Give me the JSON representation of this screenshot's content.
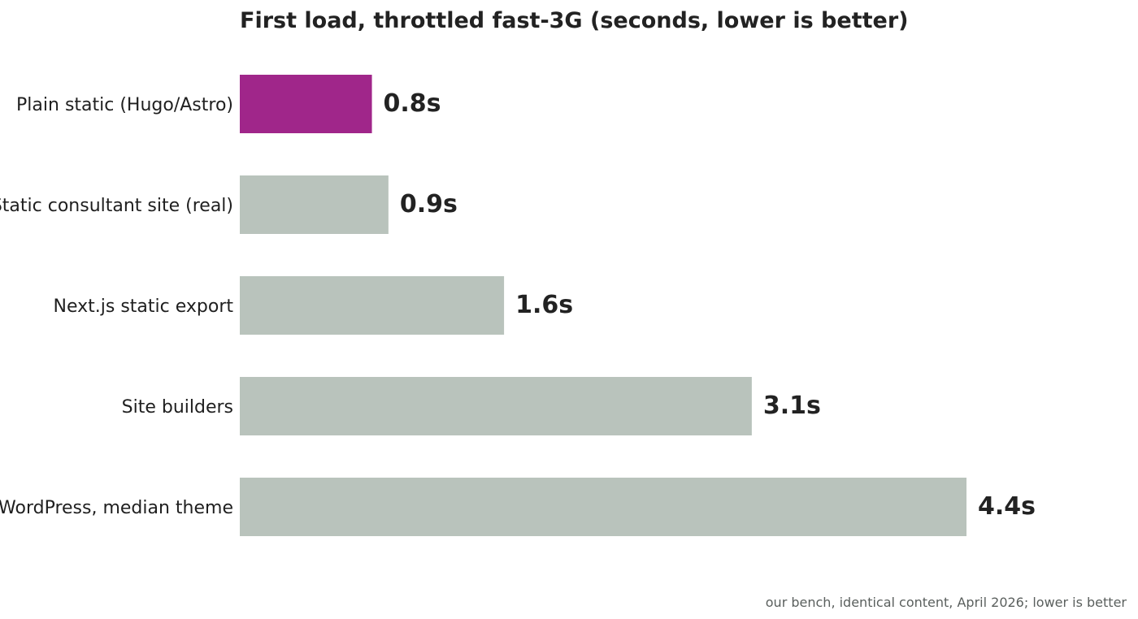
{
  "chart_data": {
    "type": "bar",
    "orientation": "horizontal",
    "title": "First load, throttled fast-3G (seconds, lower is better)",
    "categories": [
      "Plain static (Hugo/Astro)",
      "Static consultant site (real)",
      "Next.js static export",
      "Site builders",
      "WordPress, median theme"
    ],
    "values": [
      0.8,
      0.9,
      1.6,
      3.1,
      4.4
    ],
    "value_labels": [
      "0.8s",
      "0.9s",
      "1.6s",
      "3.1s",
      "4.4s"
    ],
    "unit": "s",
    "xlim": [
      0,
      4.4
    ],
    "highlight_index": 0,
    "colors": {
      "highlight": "#a0268a",
      "default": "#b9c3bc",
      "text": "#222222",
      "footnote": "#5a5f5d"
    },
    "grid": false,
    "legend": "none",
    "xlabel": "",
    "ylabel": "",
    "footnote": "our bench, identical content, April 2026; lower is better"
  }
}
